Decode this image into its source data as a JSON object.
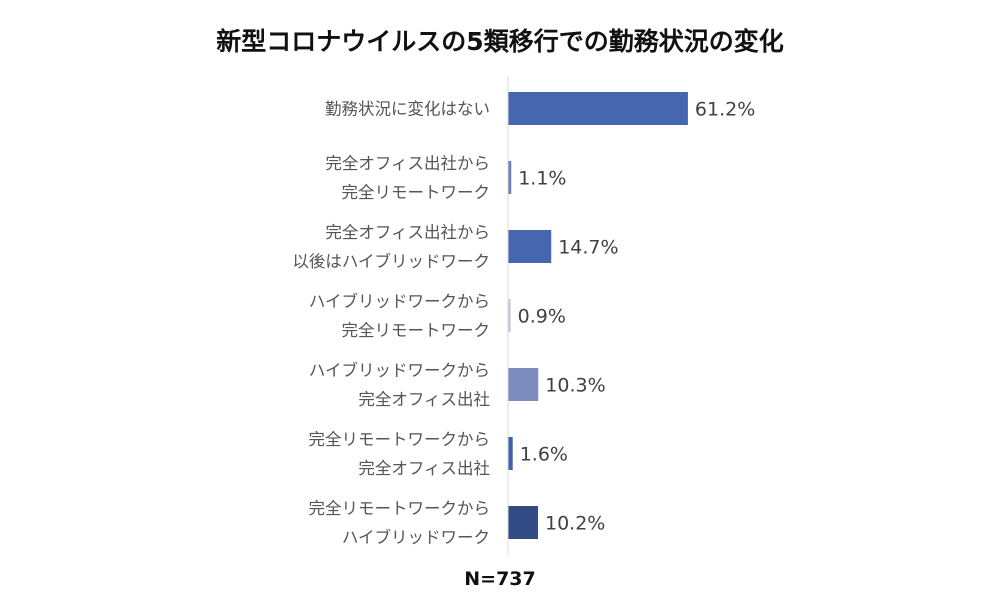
{
  "chart_data": {
    "type": "bar",
    "orientation": "horizontal",
    "title": "新型コロナウイルスの5類移行での勤務状況の変化",
    "note": "N=737",
    "value_suffix": "%",
    "xlim": [
      0,
      100
    ],
    "grid": false,
    "legend": "none",
    "categories": [
      [
        "勤務状況に変化はない"
      ],
      [
        "完全オフィス出社から",
        "完全リモートワーク"
      ],
      [
        "完全オフィス出社から",
        "以後はハイブリッドワーク"
      ],
      [
        "ハイブリッドワークから",
        "完全リモートワーク"
      ],
      [
        "ハイブリッドワークから",
        "完全オフィス出社"
      ],
      [
        "完全リモートワークから",
        "完全オフィス出社"
      ],
      [
        "完全リモートワークから",
        "ハイブリッドワーク"
      ]
    ],
    "values": [
      61.2,
      1.1,
      14.7,
      0.9,
      10.3,
      1.6,
      10.2
    ],
    "value_labels": [
      "61.2%",
      "1.1%",
      "14.7%",
      "0.9%",
      "10.3%",
      "1.6%",
      "10.2%"
    ],
    "colors": [
      "#4666b0",
      "#6e7fb8",
      "#4666b0",
      "#c5c9d6",
      "#7f8cc0",
      "#4060aa",
      "#334b84"
    ]
  }
}
